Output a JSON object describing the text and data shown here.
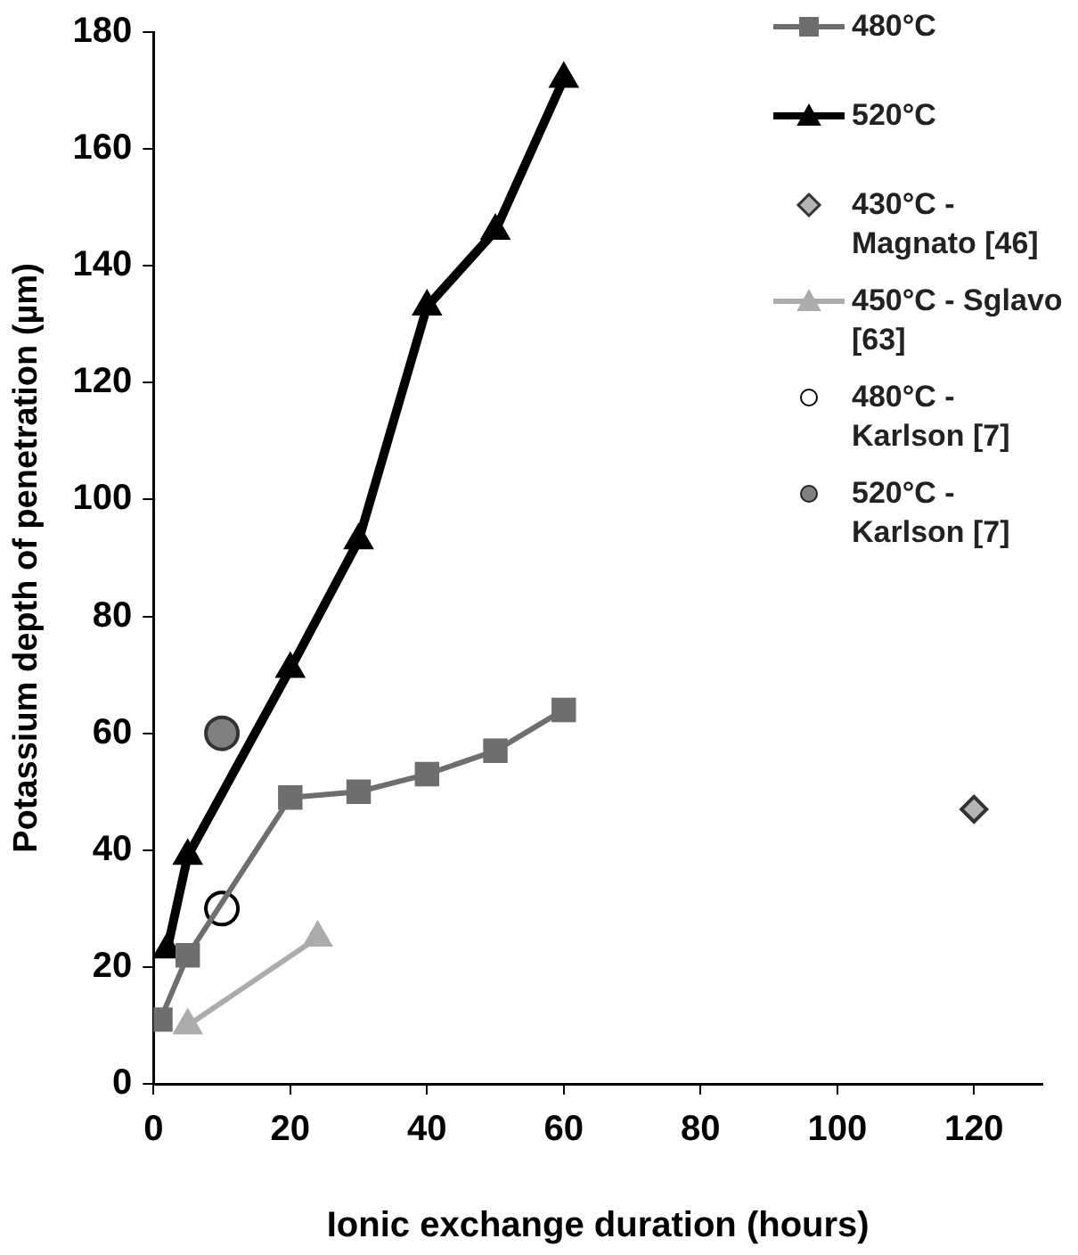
{
  "chart_data": {
    "type": "line",
    "xlabel": "Ionic exchange duration (hours)",
    "ylabel": "Potassium depth of penetration (µm)",
    "xlim": [
      0,
      130
    ],
    "xticks": [
      0,
      20,
      40,
      60,
      80,
      100,
      120
    ],
    "ylim": [
      0,
      180
    ],
    "yticks": [
      0,
      20,
      40,
      60,
      80,
      100,
      120,
      140,
      160,
      180
    ],
    "grid": false,
    "legend": "top right",
    "series": [
      {
        "name": "480°C",
        "type": "line",
        "marker": "square",
        "color": "#6e6e6e",
        "x": [
          1,
          5,
          20,
          30,
          40,
          50,
          60
        ],
        "values": [
          11,
          22,
          49,
          50,
          53,
          57,
          64
        ]
      },
      {
        "name": "520°C",
        "type": "line",
        "marker": "triangle",
        "color": "#000000",
        "x": [
          2,
          5,
          20,
          30,
          40,
          50,
          60
        ],
        "values": [
          23,
          39,
          71,
          93,
          133,
          146,
          172
        ]
      },
      {
        "name": "430°C - Magnato [46]",
        "type": "scatter",
        "marker": "diamond",
        "color": "#b4b4b4",
        "x": [
          120
        ],
        "values": [
          47
        ]
      },
      {
        "name": "450°C - Sglavo [63]",
        "type": "line",
        "marker": "triangle",
        "color": "#acacac",
        "x": [
          5,
          24
        ],
        "values": [
          10,
          25
        ]
      },
      {
        "name": "480°C - Karlson [7]",
        "type": "scatter",
        "marker": "circle",
        "color": "#ffffff",
        "x": [
          10
        ],
        "values": [
          30
        ]
      },
      {
        "name": "520°C - Karlson [7]",
        "type": "scatter",
        "marker": "circle",
        "color": "#808080",
        "x": [
          10
        ],
        "values": [
          60
        ]
      }
    ]
  }
}
